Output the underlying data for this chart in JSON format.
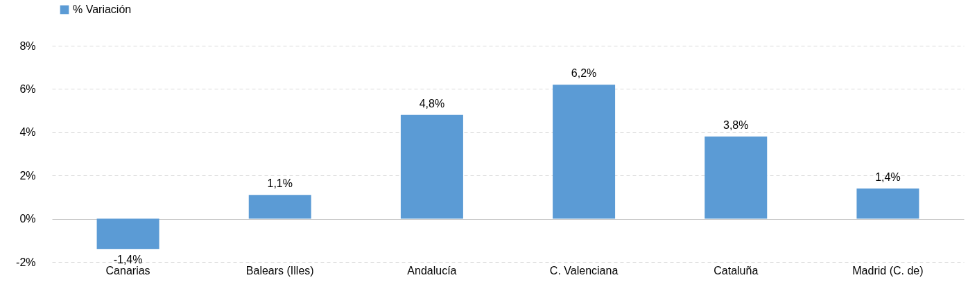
{
  "chart_data": {
    "type": "bar",
    "categories": [
      "Canarias",
      "Balears (Illes)",
      "Andalucía",
      "C. Valenciana",
      "Cataluña",
      "Madrid (C. de)"
    ],
    "series": [
      {
        "name": "% Variación",
        "color": "#5b9bd5",
        "values": [
          -1.4,
          1.1,
          4.8,
          6.2,
          3.8,
          1.4
        ],
        "value_labels": [
          "-1,4%",
          "1,1%",
          "4,8%",
          "6,2%",
          "3,8%",
          "1,4%"
        ]
      }
    ],
    "ylim": [
      -2,
      8
    ],
    "yticks": [
      {
        "value": -2,
        "label": "-2%"
      },
      {
        "value": 0,
        "label": "0%"
      },
      {
        "value": 2,
        "label": "2%"
      },
      {
        "value": 4,
        "label": "4%"
      },
      {
        "value": 6,
        "label": "6%"
      },
      {
        "value": 8,
        "label": "8%"
      }
    ],
    "grid": "y",
    "legend": "top left"
  }
}
